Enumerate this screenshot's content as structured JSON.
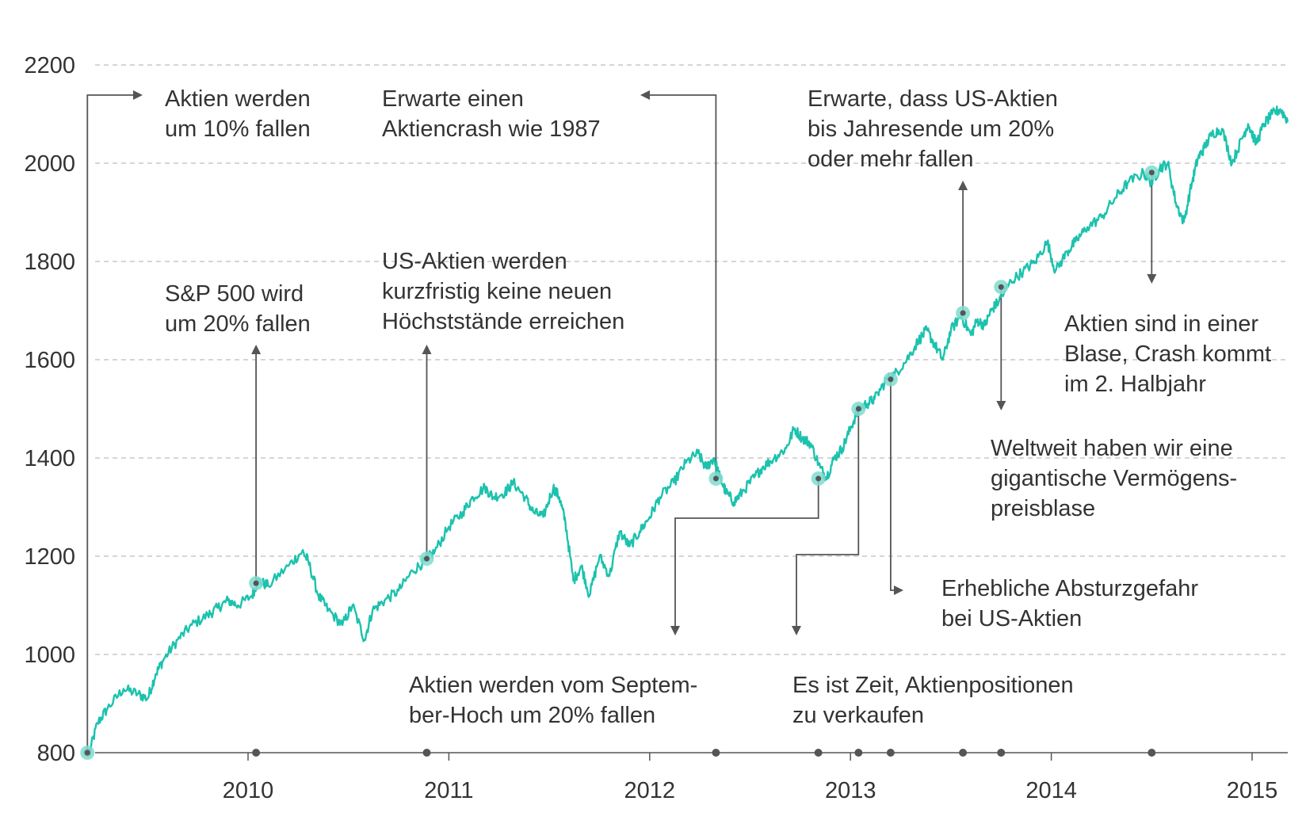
{
  "colors": {
    "line": "#1cc2ad",
    "marker": "#7fdcd0",
    "connector": "#555555",
    "grid": "#bdbdbd",
    "text": "#333333"
  },
  "chart_data": {
    "type": "line",
    "title": "",
    "xlabel": "",
    "ylabel": "",
    "xlim": [
      2009.2,
      2015.2
    ],
    "ylim": [
      800,
      2200
    ],
    "y_ticks": [
      800,
      1000,
      1200,
      1400,
      1600,
      1800,
      2000,
      2200
    ],
    "x_ticks": [
      2010,
      2011,
      2012,
      2013,
      2014,
      2015
    ],
    "grid": "horizontal dashed",
    "legend": "none",
    "series": [
      {
        "x": [
          2009.21,
          2009.25,
          2009.3,
          2009.38,
          2009.45,
          2009.5,
          2009.54,
          2009.58,
          2009.65,
          2009.72,
          2009.8,
          2009.85,
          2009.9,
          2009.95,
          2010.02,
          2010.05,
          2010.1,
          2010.2,
          2010.27,
          2010.3,
          2010.35,
          2010.4,
          2010.47,
          2010.52,
          2010.58,
          2010.62,
          2010.68,
          2010.75,
          2010.82,
          2010.88,
          2010.93,
          2011.0,
          2011.07,
          2011.12,
          2011.18,
          2011.22,
          2011.28,
          2011.32,
          2011.38,
          2011.42,
          2011.47,
          2011.52,
          2011.55,
          2011.58,
          2011.62,
          2011.66,
          2011.7,
          2011.75,
          2011.8,
          2011.85,
          2011.9,
          2011.95,
          2012.0,
          2012.05,
          2012.12,
          2012.18,
          2012.24,
          2012.28,
          2012.32,
          2012.35,
          2012.38,
          2012.42,
          2012.46,
          2012.52,
          2012.56,
          2012.62,
          2012.68,
          2012.72,
          2012.76,
          2012.8,
          2012.85,
          2012.88,
          2012.92,
          2012.96,
          2013.0,
          2013.04,
          2013.08,
          2013.12,
          2013.18,
          2013.22,
          2013.28,
          2013.34,
          2013.38,
          2013.42,
          2013.46,
          2013.5,
          2013.55,
          2013.6,
          2013.63,
          2013.67,
          2013.7,
          2013.74,
          2013.8,
          2013.86,
          2013.92,
          2013.98,
          2014.02,
          2014.08,
          2014.12,
          2014.18,
          2014.25,
          2014.32,
          2014.38,
          2014.46,
          2014.5,
          2014.54,
          2014.58,
          2014.62,
          2014.66,
          2014.7,
          2014.73,
          2014.76,
          2014.8,
          2014.85,
          2014.9,
          2014.95,
          2014.98,
          2015.02,
          2015.06,
          2015.1,
          2015.14,
          2015.18
        ],
        "values": [
          800,
          860,
          890,
          930,
          920,
          910,
          960,
          990,
          1030,
          1060,
          1080,
          1095,
          1110,
          1100,
          1120,
          1150,
          1140,
          1180,
          1210,
          1190,
          1120,
          1090,
          1060,
          1100,
          1030,
          1090,
          1110,
          1130,
          1170,
          1190,
          1210,
          1260,
          1290,
          1320,
          1340,
          1320,
          1330,
          1350,
          1320,
          1290,
          1280,
          1340,
          1320,
          1270,
          1150,
          1180,
          1120,
          1200,
          1160,
          1250,
          1220,
          1250,
          1280,
          1320,
          1350,
          1390,
          1410,
          1380,
          1400,
          1360,
          1330,
          1310,
          1330,
          1360,
          1380,
          1400,
          1420,
          1460,
          1440,
          1430,
          1380,
          1360,
          1400,
          1420,
          1460,
          1500,
          1510,
          1520,
          1560,
          1570,
          1600,
          1640,
          1660,
          1630,
          1600,
          1660,
          1690,
          1650,
          1680,
          1670,
          1700,
          1720,
          1760,
          1780,
          1800,
          1840,
          1780,
          1820,
          1840,
          1870,
          1890,
          1930,
          1960,
          1980,
          1960,
          1990,
          2000,
          1920,
          1880,
          1960,
          2010,
          2030,
          2060,
          2070,
          2000,
          2050,
          2080,
          2040,
          2080,
          2100,
          2110,
          2085
        ]
      }
    ],
    "markers": [
      {
        "x": 2009.2,
        "y": 800
      },
      {
        "x": 2010.04,
        "y": 1145
      },
      {
        "x": 2010.89,
        "y": 1195
      },
      {
        "x": 2012.33,
        "y": 1358
      },
      {
        "x": 2012.84,
        "y": 1358
      },
      {
        "x": 2013.04,
        "y": 1500
      },
      {
        "x": 2013.2,
        "y": 1560
      },
      {
        "x": 2013.56,
        "y": 1695
      },
      {
        "x": 2013.75,
        "y": 1748
      },
      {
        "x": 2014.5,
        "y": 1981
      }
    ],
    "annotations": [
      {
        "lines": [
          "Aktien werden",
          "um 10% fallen"
        ]
      },
      {
        "lines": [
          "S&P 500 wird",
          "um 20% fallen"
        ]
      },
      {
        "lines": [
          "Erwarte einen",
          "Aktiencrash wie 1987"
        ]
      },
      {
        "lines": [
          "US-Aktien werden",
          "kurzfristig keine neuen",
          "Höchststände erreichen"
        ]
      },
      {
        "lines": [
          "Aktien werden vom Septem-",
          "ber-Hoch um 20% fallen"
        ]
      },
      {
        "lines": [
          "Es ist Zeit, Aktienpositionen",
          "zu verkaufen"
        ]
      },
      {
        "lines": [
          "Erhebliche Absturzgefahr",
          "bei US-Aktien"
        ]
      },
      {
        "lines": [
          "Erwarte, dass US-Aktien",
          "bis Jahresende um 20%",
          "oder mehr fallen"
        ]
      },
      {
        "lines": [
          "Weltweit haben wir eine",
          "gigantische Vermögens-",
          "preisblase"
        ]
      },
      {
        "lines": [
          "Aktien sind in einer",
          "Blase, Crash kommt",
          "im 2. Halbjahr"
        ]
      }
    ]
  }
}
